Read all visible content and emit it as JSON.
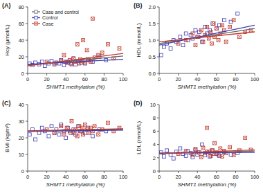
{
  "chart_data": [
    {
      "type": "scatter",
      "title": "(A)",
      "x_label": "SHMT1 methylation (%)",
      "y_label": "Hcy (μmol/L)",
      "xlim": [
        0,
        100
      ],
      "xticks": [
        0,
        20,
        40,
        60,
        80,
        100
      ],
      "ylim": [
        0,
        80
      ],
      "yticks": [
        0,
        20,
        40,
        60,
        80
      ],
      "legend": "top-left",
      "series": [
        {
          "name": "Case and control",
          "type": "line",
          "color": "#666666",
          "x": [
            0,
            100
          ],
          "values": [
            10,
            21
          ]
        },
        {
          "name": "Control",
          "type": "scatter",
          "color": "#3b3bb3",
          "marker": "square",
          "x": [
            2,
            5,
            8,
            12,
            15,
            18,
            22,
            25,
            28,
            30,
            33,
            35,
            38,
            40,
            42,
            45,
            48,
            50,
            53,
            56,
            60,
            63,
            68,
            75,
            82
          ],
          "values": [
            12,
            10,
            13,
            11,
            14,
            9,
            12,
            15,
            11,
            13,
            12,
            16,
            10,
            14,
            13,
            12,
            18,
            11,
            15,
            13,
            12,
            17,
            14,
            20,
            16
          ],
          "fit_x": [
            0,
            100
          ],
          "fit_y": [
            11,
            17
          ]
        },
        {
          "name": "Case",
          "type": "scatter",
          "color": "#c0392b",
          "marker": "square-x",
          "x": [
            20,
            28,
            35,
            38,
            41,
            44,
            46,
            48,
            50,
            52,
            54,
            55,
            57,
            58,
            60,
            62,
            64,
            66,
            68,
            70,
            74,
            78,
            84,
            90,
            96
          ],
          "values": [
            14,
            12,
            15,
            22,
            13,
            16,
            11,
            18,
            14,
            35,
            12,
            17,
            15,
            40,
            13,
            28,
            16,
            14,
            66,
            19,
            22,
            25,
            35,
            18,
            30
          ],
          "fit_x": [
            0,
            100
          ],
          "fit_y": [
            9,
            24
          ]
        }
      ]
    },
    {
      "type": "scatter",
      "title": "(B)",
      "x_label": "SHMT1 methylation (%)",
      "y_label": "HDL (mmol/L)",
      "xlim": [
        0,
        100
      ],
      "xticks": [
        0,
        20,
        40,
        60,
        80,
        100
      ],
      "ylim": [
        0,
        2
      ],
      "yticks": [
        {
          "value": 0,
          "label": "0.0"
        },
        0.5,
        {
          "value": 1,
          "label": "1.0"
        },
        1.5,
        {
          "value": 2,
          "label": "2.0"
        }
      ],
      "series": [
        {
          "type": "line",
          "color": "#666666",
          "x": [
            0,
            100
          ],
          "values": [
            0.9,
            1.35
          ]
        },
        {
          "type": "scatter",
          "color": "#3b3bb3",
          "marker": "square",
          "x": [
            2,
            5,
            8,
            12,
            15,
            18,
            22,
            25,
            28,
            30,
            33,
            35,
            38,
            40,
            42,
            45,
            48,
            50,
            53,
            56,
            60,
            63,
            68,
            75,
            82
          ],
          "values": [
            0.55,
            0.8,
            0.9,
            0.75,
            1.0,
            0.95,
            1.1,
            0.85,
            1.2,
            1.0,
            1.15,
            1.05,
            1.3,
            1.1,
            1.25,
            0.95,
            1.4,
            1.2,
            1.3,
            1.5,
            1.35,
            1.45,
            1.6,
            1.55,
            1.8
          ],
          "fit_x": [
            0,
            100
          ],
          "fit_y": [
            0.85,
            1.45
          ]
        },
        {
          "type": "scatter",
          "color": "#c0392b",
          "marker": "square-x",
          "x": [
            20,
            28,
            35,
            38,
            41,
            44,
            46,
            48,
            50,
            52,
            54,
            55,
            57,
            58,
            60,
            62,
            64,
            66,
            68,
            70,
            74,
            78,
            84,
            90,
            96
          ],
          "values": [
            0.9,
            1.0,
            1.2,
            0.85,
            1.1,
            1.3,
            0.95,
            1.15,
            1.4,
            1.05,
            1.25,
            0.9,
            1.5,
            1.1,
            1.35,
            1.0,
            1.2,
            1.45,
            1.3,
            0.95,
            1.4,
            1.6,
            1.1,
            1.25,
            1.3
          ],
          "fit_x": [
            0,
            100
          ],
          "fit_y": [
            0.95,
            1.25
          ]
        }
      ]
    },
    {
      "type": "scatter",
      "title": "(C)",
      "x_label": "SHMT1 methylation (%)",
      "y_label": "BMI (kg/m²)",
      "xlim": [
        0,
        100
      ],
      "xticks": [
        0,
        20,
        40,
        60,
        80,
        100
      ],
      "ylim": [
        0,
        40
      ],
      "yticks": [
        0,
        10,
        20,
        30,
        40
      ],
      "series": [
        {
          "type": "line",
          "color": "#666666",
          "x": [
            0,
            100
          ],
          "values": [
            24,
            25
          ]
        },
        {
          "type": "scatter",
          "color": "#3b3bb3",
          "marker": "square",
          "x": [
            2,
            5,
            8,
            12,
            15,
            18,
            22,
            25,
            28,
            30,
            33,
            35,
            38,
            40,
            42,
            45,
            48,
            50,
            53,
            56,
            60,
            63,
            68,
            75,
            82
          ],
          "values": [
            22,
            25,
            19,
            23,
            26,
            24,
            21,
            27,
            23,
            25,
            22,
            28,
            24,
            20,
            26,
            23,
            25,
            22,
            27,
            24,
            23,
            26,
            21,
            25,
            24
          ],
          "fit_x": [
            0,
            100
          ],
          "fit_y": [
            23.8,
            24.6
          ]
        },
        {
          "type": "scatter",
          "color": "#c0392b",
          "marker": "square-x",
          "x": [
            20,
            28,
            35,
            38,
            41,
            44,
            46,
            48,
            50,
            52,
            54,
            55,
            57,
            58,
            60,
            62,
            64,
            66,
            68,
            70,
            74,
            78,
            84,
            90,
            96
          ],
          "values": [
            25,
            23,
            27,
            22,
            26,
            24,
            30,
            23,
            25,
            21,
            27,
            24,
            26,
            22,
            28,
            25,
            23,
            26,
            24,
            27,
            22,
            25,
            29,
            24,
            26
          ],
          "fit_x": [
            0,
            100
          ],
          "fit_y": [
            24.2,
            25.5
          ]
        }
      ]
    },
    {
      "type": "scatter",
      "title": "(D)",
      "x_label": "SHMT1 methylation (%)",
      "y_label": "LDL (mmol/L)",
      "xlim": [
        0,
        100
      ],
      "xticks": [
        0,
        20,
        40,
        60,
        80,
        100
      ],
      "ylim": [
        0,
        10
      ],
      "yticks": [
        0,
        2,
        4,
        6,
        8,
        10
      ],
      "series": [
        {
          "type": "line",
          "color": "#666666",
          "x": [
            0,
            100
          ],
          "values": [
            2.7,
            3.0
          ]
        },
        {
          "type": "scatter",
          "color": "#3b3bb3",
          "marker": "square",
          "x": [
            2,
            5,
            8,
            12,
            15,
            18,
            22,
            25,
            28,
            30,
            33,
            35,
            38,
            40,
            42,
            45,
            48,
            50,
            53,
            56,
            60,
            63,
            68,
            75,
            82
          ],
          "values": [
            2.8,
            2.2,
            3.1,
            2.5,
            1.9,
            2.9,
            3.4,
            2.6,
            2.3,
            3.0,
            2.7,
            2.1,
            3.2,
            2.5,
            2.8,
            4.0,
            2.4,
            2.9,
            2.2,
            3.1,
            2.6,
            2.3,
            2.9,
            2.5,
            2.7
          ],
          "fit_x": [
            0,
            100
          ],
          "fit_y": [
            2.7,
            2.8
          ]
        },
        {
          "type": "scatter",
          "color": "#c0392b",
          "marker": "square-x",
          "x": [
            20,
            28,
            35,
            38,
            41,
            44,
            46,
            48,
            50,
            52,
            54,
            55,
            57,
            58,
            60,
            62,
            64,
            66,
            68,
            70,
            74,
            78,
            84,
            90,
            96
          ],
          "values": [
            2.6,
            3.0,
            2.4,
            3.3,
            2.8,
            2.1,
            3.5,
            2.7,
            6.5,
            2.9,
            2.3,
            3.1,
            2.6,
            4.2,
            2.8,
            2.5,
            3.4,
            2.2,
            3.0,
            2.7,
            3.6,
            2.4,
            3.1,
            5.0,
            3.2
          ],
          "fit_x": [
            0,
            100
          ],
          "fit_y": [
            2.6,
            3.2
          ]
        }
      ]
    }
  ]
}
